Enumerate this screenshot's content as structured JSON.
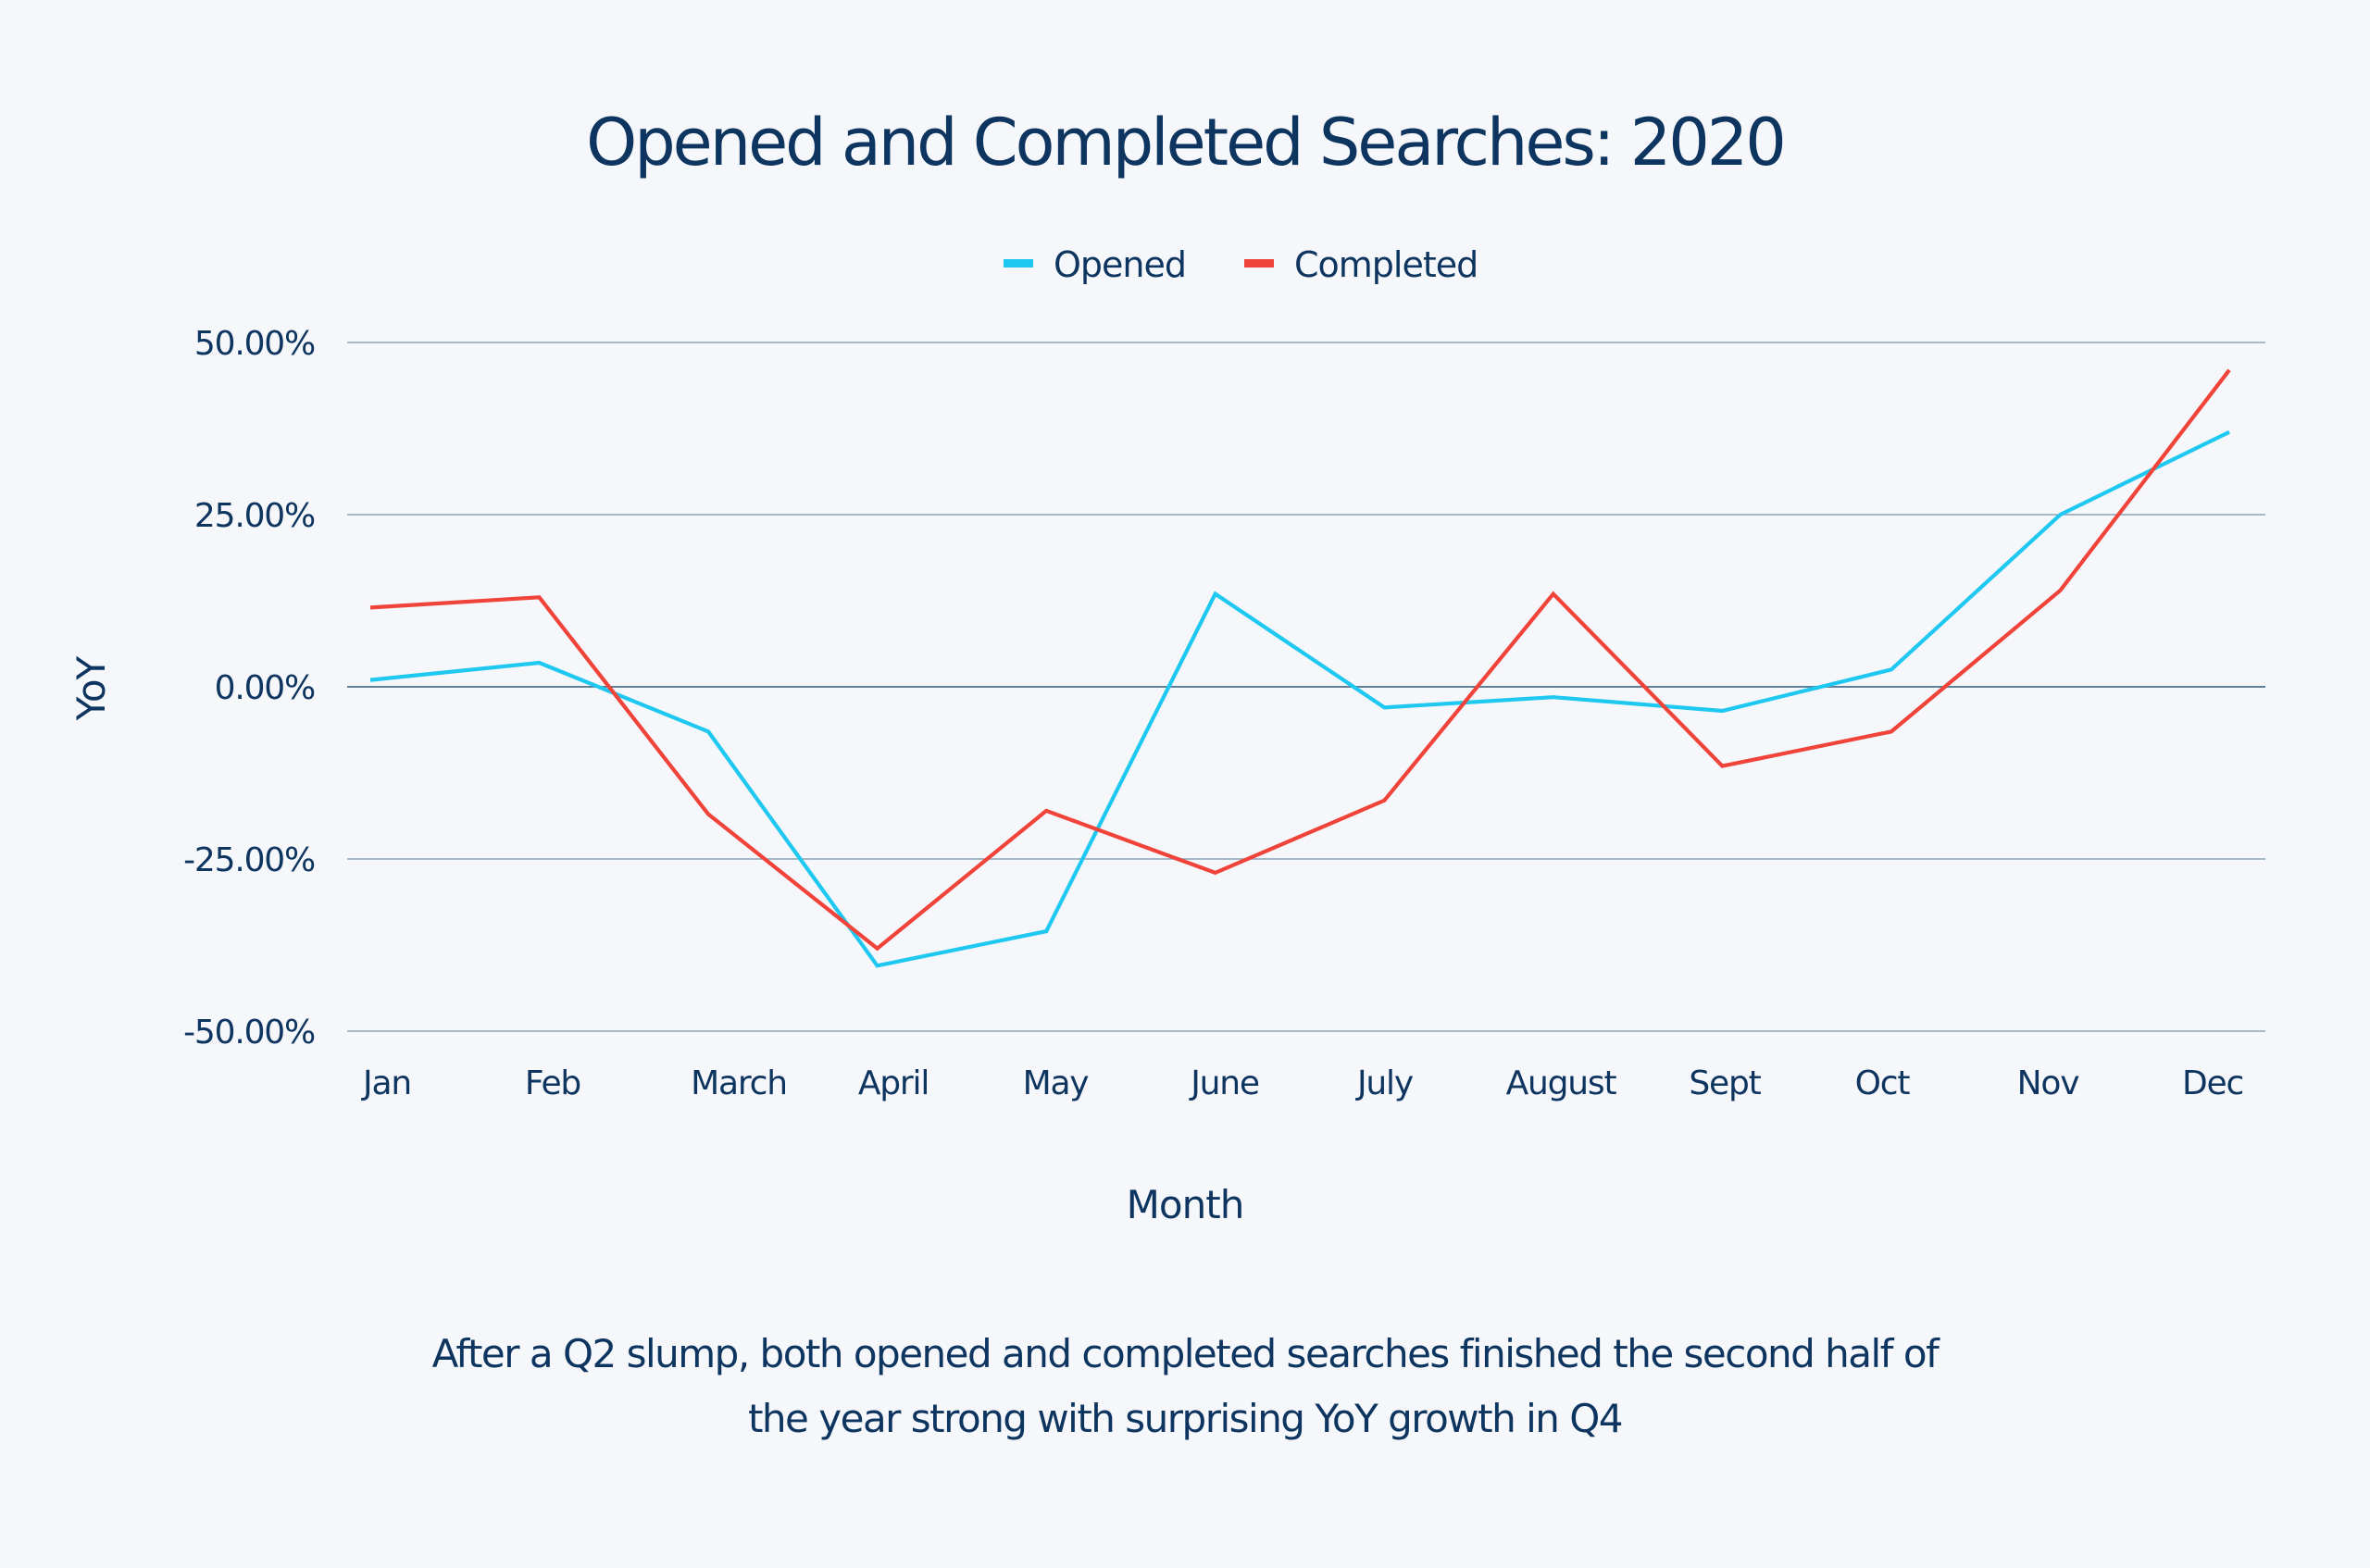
{
  "chart_data": {
    "type": "line",
    "title": "Opened and Completed Searches: 2020",
    "xlabel": "Month",
    "ylabel": "YoY",
    "categories": [
      "Jan",
      "Feb",
      "March",
      "April",
      "May",
      "June",
      "July",
      "August",
      "Sept",
      "Oct",
      "Nov",
      "Dec"
    ],
    "y_ticks": [
      "50.00%",
      "25.00%",
      "0.00%",
      "-25.00%",
      "-50.00%"
    ],
    "y_tick_values": [
      50,
      25,
      0,
      -25,
      -50
    ],
    "ylim": [
      -50,
      50
    ],
    "grid": true,
    "legend_position": "top-center",
    "series": [
      {
        "name": "Opened",
        "color": "#1ec8f0",
        "values": [
          1,
          3.5,
          -6.5,
          -40.5,
          -35.5,
          13.5,
          -3,
          -1.5,
          -3.5,
          2.5,
          25,
          37
        ]
      },
      {
        "name": "Completed",
        "color": "#f0443a",
        "values": [
          11.5,
          13,
          -18.5,
          -38,
          -18,
          -27,
          -16.5,
          13.5,
          -11.5,
          -6.5,
          14,
          46
        ]
      }
    ]
  },
  "caption": {
    "line1": "After a Q2 slump, both opened and completed searches finished the second half of",
    "line2": "the year strong with surprising YoY growth in Q4"
  },
  "colors": {
    "background": "#f6f7fb",
    "text": "#0d3560",
    "grid": "#8aa3b8",
    "zero_line": "#5f7f9a"
  }
}
